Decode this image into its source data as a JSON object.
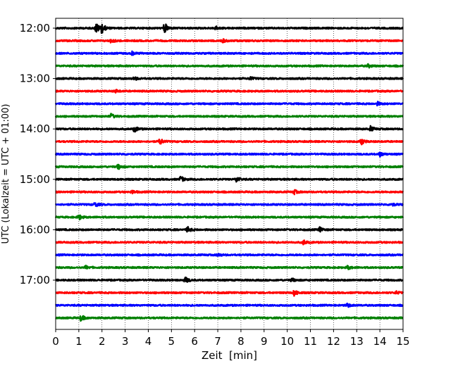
{
  "chart_data": {
    "type": "line",
    "xlabel": "Zeit  [min]",
    "ylabel": "UTC (Lokalzeit = UTC + 01:00)",
    "xlim": [
      0,
      15
    ],
    "x_ticks": [
      0,
      1,
      2,
      3,
      4,
      5,
      6,
      7,
      8,
      9,
      10,
      11,
      12,
      13,
      14,
      15
    ],
    "x_grid": "dotted vertical lines at every minute",
    "trace_interval_min": 15,
    "y_ticks": [
      "12:00",
      "13:00",
      "14:00",
      "15:00",
      "16:00",
      "17:00"
    ],
    "colors": [
      "#000000",
      "#ff0000",
      "#0000ff",
      "#008000"
    ],
    "traces": [
      {
        "start": "12:00",
        "color": "#000000",
        "events": [
          {
            "t": 1.75,
            "amp": 1.0
          },
          {
            "t": 2.0,
            "amp": 0.9
          },
          {
            "t": 4.7,
            "amp": 1.0
          },
          {
            "t": 6.9,
            "amp": 0.35
          }
        ]
      },
      {
        "start": "12:15",
        "color": "#ff0000",
        "events": [
          {
            "t": 2.4,
            "amp": 0.35
          },
          {
            "t": 7.2,
            "amp": 0.35
          }
        ]
      },
      {
        "start": "12:30",
        "color": "#0000ff",
        "events": [
          {
            "t": 3.3,
            "amp": 0.3
          }
        ]
      },
      {
        "start": "12:45",
        "color": "#008000",
        "events": [
          {
            "t": 13.5,
            "amp": 0.3
          }
        ]
      },
      {
        "start": "13:00",
        "color": "#000000",
        "events": [
          {
            "t": 3.4,
            "amp": 0.3
          },
          {
            "t": 8.4,
            "amp": 0.3
          }
        ]
      },
      {
        "start": "13:15",
        "color": "#ff0000",
        "events": [
          {
            "t": 2.6,
            "amp": 0.25
          }
        ]
      },
      {
        "start": "13:30",
        "color": "#0000ff",
        "events": [
          {
            "t": 13.9,
            "amp": 0.3
          }
        ]
      },
      {
        "start": "13:45",
        "color": "#008000",
        "events": [
          {
            "t": 2.4,
            "amp": 0.45
          }
        ]
      },
      {
        "start": "14:00",
        "color": "#000000",
        "events": [
          {
            "t": 3.4,
            "amp": 0.55
          },
          {
            "t": 13.6,
            "amp": 0.45
          }
        ]
      },
      {
        "start": "14:15",
        "color": "#ff0000",
        "events": [
          {
            "t": 4.5,
            "amp": 0.6
          },
          {
            "t": 13.2,
            "amp": 0.55
          }
        ]
      },
      {
        "start": "14:30",
        "color": "#0000ff",
        "events": [
          {
            "t": 14.0,
            "amp": 0.4
          }
        ]
      },
      {
        "start": "14:45",
        "color": "#008000",
        "events": [
          {
            "t": 2.7,
            "amp": 0.45
          }
        ]
      },
      {
        "start": "15:00",
        "color": "#000000",
        "events": [
          {
            "t": 5.4,
            "amp": 0.55
          },
          {
            "t": 7.8,
            "amp": 0.55
          }
        ]
      },
      {
        "start": "15:15",
        "color": "#ff0000",
        "events": [
          {
            "t": 3.3,
            "amp": 0.3
          },
          {
            "t": 10.3,
            "amp": 0.4
          }
        ]
      },
      {
        "start": "15:30",
        "color": "#0000ff",
        "events": [
          {
            "t": 1.7,
            "amp": 0.45
          },
          {
            "t": 14.5,
            "amp": 0.3
          }
        ]
      },
      {
        "start": "15:45",
        "color": "#008000",
        "events": [
          {
            "t": 1.0,
            "amp": 0.5
          }
        ]
      },
      {
        "start": "16:00",
        "color": "#000000",
        "events": [
          {
            "t": 5.7,
            "amp": 0.5
          },
          {
            "t": 11.4,
            "amp": 0.45
          }
        ]
      },
      {
        "start": "16:15",
        "color": "#ff0000",
        "events": [
          {
            "t": 10.7,
            "amp": 0.45
          }
        ]
      },
      {
        "start": "16:30",
        "color": "#0000ff",
        "events": [
          {
            "t": 7.0,
            "amp": 0.25
          }
        ]
      },
      {
        "start": "16:45",
        "color": "#008000",
        "events": [
          {
            "t": 1.3,
            "amp": 0.3
          },
          {
            "t": 12.6,
            "amp": 0.35
          }
        ]
      },
      {
        "start": "17:00",
        "color": "#000000",
        "events": [
          {
            "t": 5.6,
            "amp": 0.55
          },
          {
            "t": 10.2,
            "amp": 0.3
          }
        ]
      },
      {
        "start": "17:15",
        "color": "#ff0000",
        "events": [
          {
            "t": 10.3,
            "amp": 0.55
          },
          {
            "t": 14.7,
            "amp": 0.25
          }
        ]
      },
      {
        "start": "17:30",
        "color": "#0000ff",
        "events": [
          {
            "t": 12.6,
            "amp": 0.35
          }
        ]
      },
      {
        "start": "17:45",
        "color": "#008000",
        "events": [
          {
            "t": 1.1,
            "amp": 0.55
          }
        ]
      }
    ]
  }
}
